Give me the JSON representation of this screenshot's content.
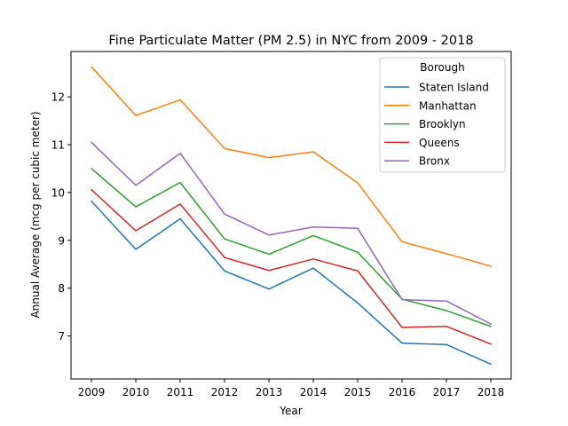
{
  "chart_data": {
    "type": "line",
    "title": "Fine Particulate Matter (PM 2.5) in NYC from 2009 - 2018",
    "xlabel": "Year",
    "ylabel": "Annual Average (mcg per cubic meter)",
    "x": [
      "2009",
      "2010",
      "2011",
      "2012",
      "2013",
      "2014",
      "2015",
      "2016",
      "2017",
      "2018"
    ],
    "xticks": [
      "2009",
      "2010",
      "2011",
      "2012",
      "2013",
      "2014",
      "2015",
      "2016",
      "2017",
      "2018"
    ],
    "yticks": [
      "7",
      "8",
      "9",
      "10",
      "11",
      "12"
    ],
    "ylim": [
      6.1,
      12.95
    ],
    "grid": false,
    "legend": {
      "title": "Borough",
      "position": "top-right"
    },
    "series": [
      {
        "name": "Staten Island",
        "color": "#1f77b4",
        "values": [
          9.82,
          8.81,
          9.45,
          8.36,
          7.98,
          8.42,
          7.69,
          6.85,
          6.82,
          6.41
        ]
      },
      {
        "name": "Manhattan",
        "color": "#ff7f0e",
        "values": [
          12.63,
          11.61,
          11.94,
          10.92,
          10.73,
          10.85,
          10.2,
          8.97,
          8.72,
          8.46
        ]
      },
      {
        "name": "Brooklyn",
        "color": "#2ca02c",
        "values": [
          10.5,
          9.7,
          10.21,
          9.03,
          8.71,
          9.1,
          8.75,
          7.77,
          7.53,
          7.2
        ]
      },
      {
        "name": "Queens",
        "color": "#d62728",
        "values": [
          10.06,
          9.2,
          9.76,
          8.64,
          8.37,
          8.61,
          8.36,
          7.18,
          7.2,
          6.83
        ]
      },
      {
        "name": "Bronx",
        "color": "#9467bd",
        "values": [
          11.05,
          10.15,
          10.82,
          9.55,
          9.11,
          9.28,
          9.25,
          7.76,
          7.73,
          7.25
        ]
      }
    ]
  }
}
